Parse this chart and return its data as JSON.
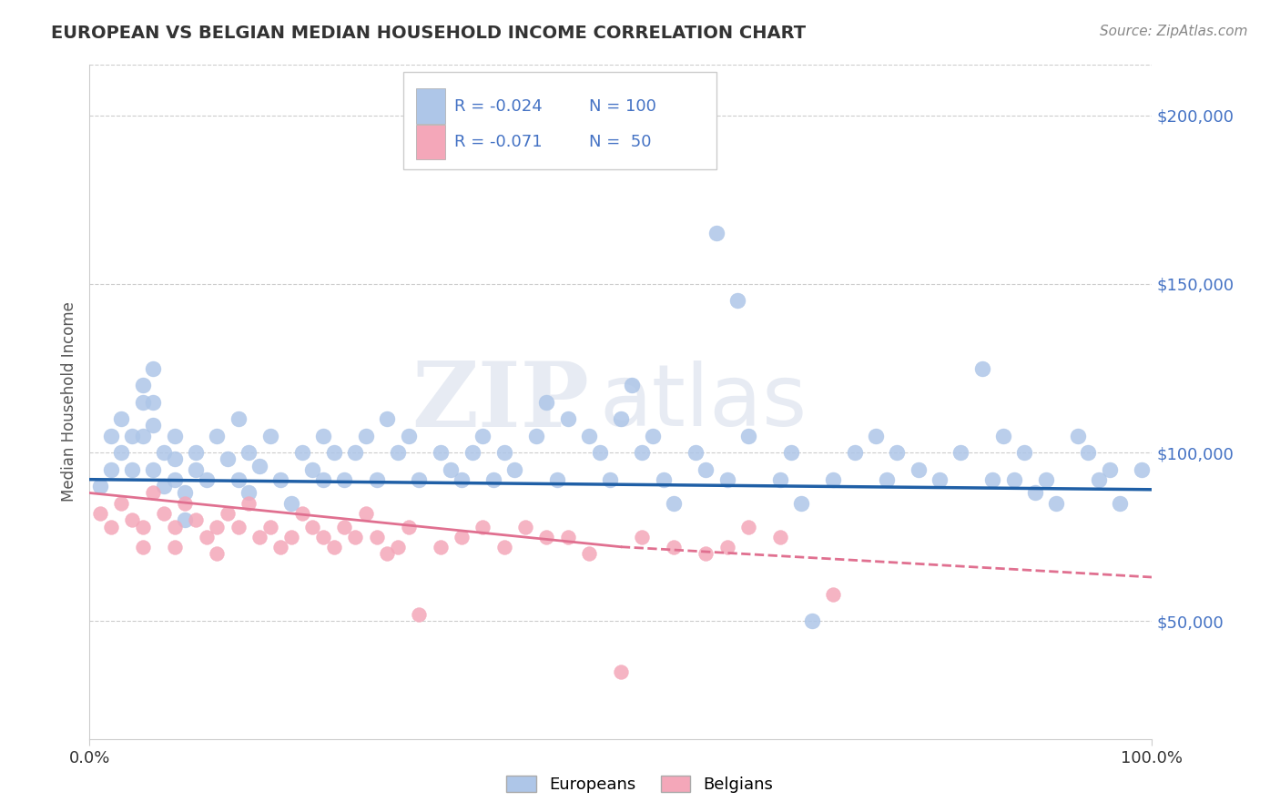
{
  "title": "EUROPEAN VS BELGIAN MEDIAN HOUSEHOLD INCOME CORRELATION CHART",
  "source": "Source: ZipAtlas.com",
  "ylabel": "Median Household Income",
  "ytick_labels": [
    "$50,000",
    "$100,000",
    "$150,000",
    "$200,000"
  ],
  "ytick_values": [
    50000,
    100000,
    150000,
    200000
  ],
  "xtick_labels": [
    "0.0%",
    "100.0%"
  ],
  "xlim": [
    0,
    100
  ],
  "ylim": [
    15000,
    215000
  ],
  "legend_label1": "Europeans",
  "legend_label2": "Belgians",
  "r1": "-0.024",
  "n1": "100",
  "r2": "-0.071",
  "n2": " 50",
  "color_european": "#aec6e8",
  "color_belgian": "#f4a7b9",
  "color_european_line": "#1f5fa6",
  "color_belgian_line": "#e07090",
  "color_title": "#333333",
  "color_yticks": "#4472c4",
  "color_xticks": "#333333",
  "watermark_zip": "ZIP",
  "watermark_atlas": "atlas",
  "background_color": "#ffffff",
  "grid_color": "#cccccc",
  "europeans_x": [
    1,
    2,
    2,
    3,
    3,
    4,
    4,
    5,
    5,
    5,
    6,
    6,
    6,
    6,
    7,
    7,
    8,
    8,
    8,
    9,
    9,
    10,
    10,
    11,
    12,
    13,
    14,
    14,
    15,
    15,
    16,
    17,
    18,
    19,
    20,
    21,
    22,
    22,
    23,
    24,
    25,
    26,
    27,
    28,
    29,
    30,
    31,
    33,
    34,
    35,
    36,
    37,
    38,
    39,
    40,
    42,
    43,
    44,
    45,
    47,
    48,
    49,
    50,
    51,
    52,
    53,
    54,
    55,
    57,
    58,
    59,
    60,
    61,
    62,
    65,
    66,
    67,
    68,
    70,
    72,
    74,
    75,
    76,
    78,
    80,
    82,
    84,
    85,
    86,
    87,
    88,
    89,
    90,
    91,
    93,
    94,
    95,
    96,
    97,
    99
  ],
  "europeans_y": [
    90000,
    105000,
    95000,
    110000,
    100000,
    95000,
    105000,
    115000,
    120000,
    105000,
    125000,
    115000,
    108000,
    95000,
    100000,
    90000,
    105000,
    98000,
    92000,
    88000,
    80000,
    100000,
    95000,
    92000,
    105000,
    98000,
    110000,
    92000,
    100000,
    88000,
    96000,
    105000,
    92000,
    85000,
    100000,
    95000,
    92000,
    105000,
    100000,
    92000,
    100000,
    105000,
    92000,
    110000,
    100000,
    105000,
    92000,
    100000,
    95000,
    92000,
    100000,
    105000,
    92000,
    100000,
    95000,
    105000,
    115000,
    92000,
    110000,
    105000,
    100000,
    92000,
    110000,
    120000,
    100000,
    105000,
    92000,
    85000,
    100000,
    95000,
    165000,
    92000,
    145000,
    105000,
    92000,
    100000,
    85000,
    50000,
    92000,
    100000,
    105000,
    92000,
    100000,
    95000,
    92000,
    100000,
    125000,
    92000,
    105000,
    92000,
    100000,
    88000,
    92000,
    85000,
    105000,
    100000,
    92000,
    95000,
    85000,
    95000
  ],
  "belgians_x": [
    1,
    2,
    3,
    4,
    5,
    5,
    6,
    7,
    8,
    8,
    9,
    10,
    11,
    12,
    12,
    13,
    14,
    15,
    16,
    17,
    18,
    19,
    20,
    21,
    22,
    23,
    24,
    25,
    26,
    27,
    28,
    29,
    30,
    31,
    33,
    35,
    37,
    39,
    41,
    43,
    45,
    47,
    50,
    52,
    55,
    58,
    60,
    62,
    65,
    70
  ],
  "belgians_y": [
    82000,
    78000,
    85000,
    80000,
    78000,
    72000,
    88000,
    82000,
    78000,
    72000,
    85000,
    80000,
    75000,
    78000,
    70000,
    82000,
    78000,
    85000,
    75000,
    78000,
    72000,
    75000,
    82000,
    78000,
    75000,
    72000,
    78000,
    75000,
    82000,
    75000,
    70000,
    72000,
    78000,
    52000,
    72000,
    75000,
    78000,
    72000,
    78000,
    75000,
    75000,
    70000,
    35000,
    75000,
    72000,
    70000,
    72000,
    78000,
    75000,
    58000
  ]
}
